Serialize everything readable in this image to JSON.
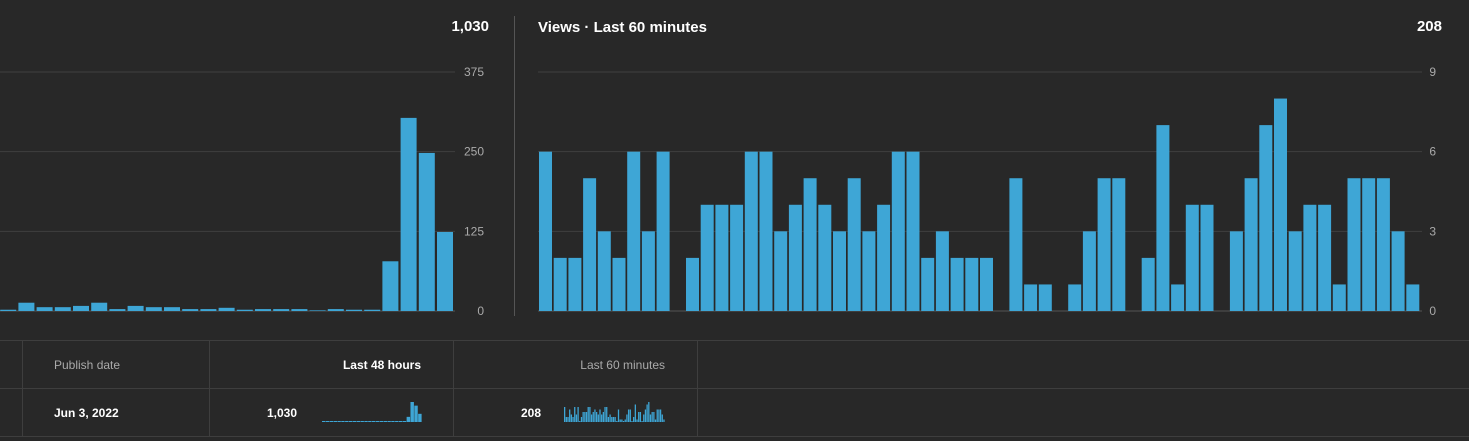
{
  "left_panel": {
    "total": "1,030"
  },
  "right_panel": {
    "title": "Views · Last 60 minutes",
    "total": "208"
  },
  "chart_data": [
    {
      "type": "bar",
      "xlabel": "",
      "ylabel": "",
      "ylim": [
        0,
        375
      ],
      "yticks": [
        "0",
        "125",
        "250",
        "375"
      ],
      "grid": true,
      "values": [
        13,
        2,
        13,
        6,
        6,
        8,
        13,
        3,
        8,
        6,
        6,
        3,
        3,
        5,
        2,
        3,
        3,
        3,
        1,
        3,
        2,
        2,
        78,
        303,
        248,
        124
      ]
    },
    {
      "type": "bar",
      "xlabel": "",
      "ylabel": "",
      "ylim": [
        0,
        9
      ],
      "yticks": [
        "0",
        "3",
        "6",
        "9"
      ],
      "grid": true,
      "values": [
        6,
        2,
        2,
        5,
        3,
        2,
        6,
        3,
        6,
        0,
        2,
        4,
        4,
        4,
        6,
        6,
        3,
        4,
        5,
        4,
        3,
        5,
        3,
        4,
        6,
        6,
        2,
        3,
        2,
        2,
        2,
        0,
        5,
        1,
        1,
        0,
        1,
        3,
        5,
        5,
        0,
        2,
        7,
        1,
        4,
        4,
        0,
        3,
        5,
        7,
        8,
        3,
        4,
        4,
        1,
        5,
        5,
        5,
        3,
        1
      ]
    }
  ],
  "table": {
    "headers": {
      "publish_date": "Publish date",
      "last_48": "Last 48 hours",
      "last_60": "Last 60 minutes"
    },
    "row": {
      "publish_date": "Jun 3, 2022",
      "last_48": "1,030",
      "last_60": "208"
    }
  },
  "colors": {
    "bar": "#3ea6d6",
    "grid": "#3f3f3f",
    "axis_text": "#aaaaaa"
  }
}
